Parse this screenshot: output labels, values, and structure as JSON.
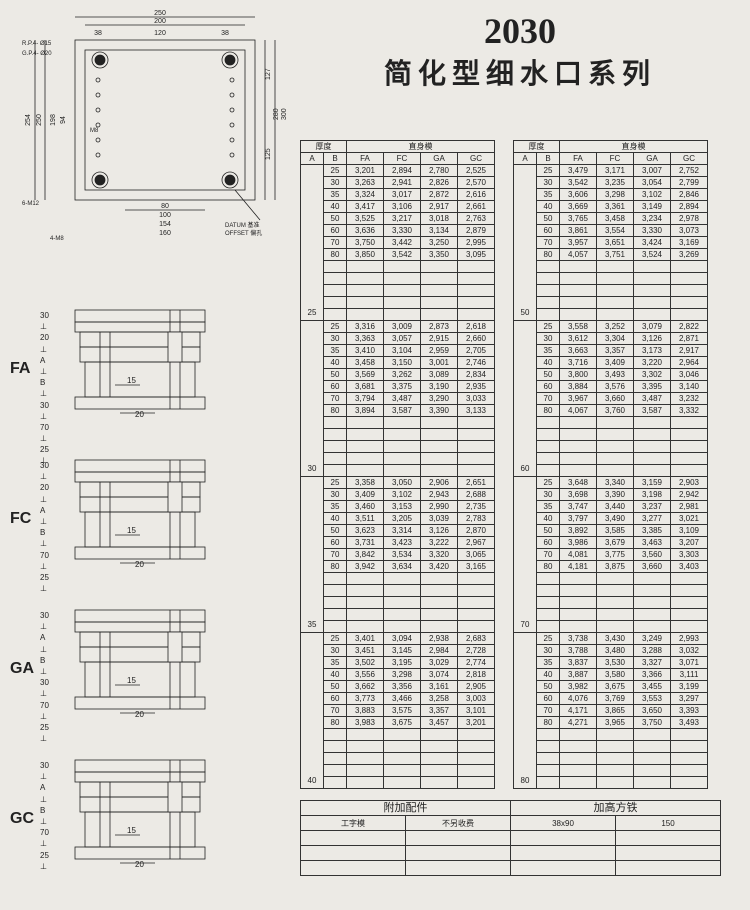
{
  "header": {
    "model": "2030",
    "subtitle": "简化型细水口系列"
  },
  "top_drawing": {
    "dims_top": [
      "250",
      "200",
      "38",
      "120",
      "38"
    ],
    "dims_left": [
      "250",
      "254",
      "198",
      "94"
    ],
    "dims_right": [
      "127",
      "280",
      "300",
      "125"
    ],
    "dims_bottom": [
      "80",
      "100",
      "154",
      "160"
    ],
    "labels": [
      "R.P.4- Ø15",
      "G.P.4- Ø20",
      "M8",
      "6-M12",
      "4-M8"
    ],
    "notes": [
      "DATUM 基准",
      "OFFSET 偏孔"
    ]
  },
  "side_codes": [
    "FA",
    "FC",
    "GA",
    "GC"
  ],
  "side_dims": {
    "FA": [
      "30",
      "20",
      "A",
      "B",
      "30",
      "70",
      "25"
    ],
    "FC": [
      "30",
      "20",
      "A",
      "B",
      "70",
      "25"
    ],
    "GA": [
      "30",
      "A",
      "B",
      "30",
      "70",
      "25"
    ],
    "GC": [
      "30",
      "A",
      "B",
      "70",
      "25"
    ]
  },
  "side_inner": {
    "v1": "15",
    "v2": "20"
  },
  "table_headers": {
    "thickness": "厚度",
    "mold": "直身模",
    "cols": [
      "A",
      "B",
      "FA",
      "FC",
      "GA",
      "GC"
    ]
  },
  "a_values_left": [
    "25",
    "30",
    "35",
    "40"
  ],
  "a_values_right": [
    "50",
    "60",
    "70",
    "80"
  ],
  "b_values": [
    "25",
    "30",
    "35",
    "40",
    "50",
    "60",
    "70",
    "80"
  ],
  "left_table": {
    "25": [
      [
        "3,201",
        "2,894",
        "2,780",
        "2,525"
      ],
      [
        "3,263",
        "2,941",
        "2,826",
        "2,570"
      ],
      [
        "3,324",
        "3,017",
        "2,872",
        "2,616"
      ],
      [
        "3,417",
        "3,106",
        "2,917",
        "2,661"
      ],
      [
        "3,525",
        "3,217",
        "3,018",
        "2,763"
      ],
      [
        "3,636",
        "3,330",
        "3,134",
        "2,879"
      ],
      [
        "3,750",
        "3,442",
        "3,250",
        "2,995"
      ],
      [
        "3,850",
        "3,542",
        "3,350",
        "3,095"
      ]
    ],
    "30": [
      [
        "3,316",
        "3,009",
        "2,873",
        "2,618"
      ],
      [
        "3,363",
        "3,057",
        "2,915",
        "2,660"
      ],
      [
        "3,410",
        "3,104",
        "2,959",
        "2,705"
      ],
      [
        "3,458",
        "3,150",
        "3,001",
        "2,746"
      ],
      [
        "3,569",
        "3,262",
        "3,089",
        "2,834"
      ],
      [
        "3,681",
        "3,375",
        "3,190",
        "2,935"
      ],
      [
        "3,794",
        "3,487",
        "3,290",
        "3,033"
      ],
      [
        "3,894",
        "3,587",
        "3,390",
        "3,133"
      ]
    ],
    "35": [
      [
        "3,358",
        "3,050",
        "2,906",
        "2,651"
      ],
      [
        "3,409",
        "3,102",
        "2,943",
        "2,688"
      ],
      [
        "3,460",
        "3,153",
        "2,990",
        "2,735"
      ],
      [
        "3,511",
        "3,205",
        "3,039",
        "2,783"
      ],
      [
        "3,623",
        "3,314",
        "3,126",
        "2,870"
      ],
      [
        "3,731",
        "3,423",
        "3,222",
        "2,967"
      ],
      [
        "3,842",
        "3,534",
        "3,320",
        "3,065"
      ],
      [
        "3,942",
        "3,634",
        "3,420",
        "3,165"
      ]
    ],
    "40": [
      [
        "3,401",
        "3,094",
        "2,938",
        "2,683"
      ],
      [
        "3,451",
        "3,145",
        "2,984",
        "2,728"
      ],
      [
        "3,502",
        "3,195",
        "3,029",
        "2,774"
      ],
      [
        "3,556",
        "3,298",
        "3,074",
        "2,818"
      ],
      [
        "3,662",
        "3,356",
        "3,161",
        "2,905"
      ],
      [
        "3,773",
        "3,466",
        "3,258",
        "3,003"
      ],
      [
        "3,883",
        "3,575",
        "3,357",
        "3,101"
      ],
      [
        "3,983",
        "3,675",
        "3,457",
        "3,201"
      ]
    ]
  },
  "right_table": {
    "50": [
      [
        "3,479",
        "3,171",
        "3,007",
        "2,752"
      ],
      [
        "3,542",
        "3,235",
        "3,054",
        "2,799"
      ],
      [
        "3,606",
        "3,298",
        "3,102",
        "2,846"
      ],
      [
        "3,669",
        "3,361",
        "3,149",
        "2,894"
      ],
      [
        "3,765",
        "3,458",
        "3,234",
        "2,978"
      ],
      [
        "3,861",
        "3,554",
        "3,330",
        "3,073"
      ],
      [
        "3,957",
        "3,651",
        "3,424",
        "3,169"
      ],
      [
        "4,057",
        "3,751",
        "3,524",
        "3,269"
      ]
    ],
    "60": [
      [
        "3,558",
        "3,252",
        "3,079",
        "2,822"
      ],
      [
        "3,612",
        "3,304",
        "3,126",
        "2,871"
      ],
      [
        "3,663",
        "3,357",
        "3,173",
        "2,917"
      ],
      [
        "3,716",
        "3,409",
        "3,220",
        "2,964"
      ],
      [
        "3,800",
        "3,493",
        "3,302",
        "3,046"
      ],
      [
        "3,884",
        "3,576",
        "3,395",
        "3,140"
      ],
      [
        "3,967",
        "3,660",
        "3,487",
        "3,232"
      ],
      [
        "4,067",
        "3,760",
        "3,587",
        "3,332"
      ]
    ],
    "70": [
      [
        "3,648",
        "3,340",
        "3,159",
        "2,903"
      ],
      [
        "3,698",
        "3,390",
        "3,198",
        "2,942"
      ],
      [
        "3,747",
        "3,440",
        "3,237",
        "2,981"
      ],
      [
        "3,797",
        "3,490",
        "3,277",
        "3,021"
      ],
      [
        "3,892",
        "3,585",
        "3,385",
        "3,109"
      ],
      [
        "3,986",
        "3,679",
        "3,463",
        "3,207"
      ],
      [
        "4,081",
        "3,775",
        "3,560",
        "3,303"
      ],
      [
        "4,181",
        "3,875",
        "3,660",
        "3,403"
      ]
    ],
    "80": [
      [
        "3,738",
        "3,430",
        "3,249",
        "2,993"
      ],
      [
        "3,788",
        "3,480",
        "3,288",
        "3,032"
      ],
      [
        "3,837",
        "3,530",
        "3,327",
        "3,071"
      ],
      [
        "3,887",
        "3,580",
        "3,366",
        "3,111"
      ],
      [
        "3,982",
        "3,675",
        "3,455",
        "3,199"
      ],
      [
        "4,076",
        "3,769",
        "3,553",
        "3,297"
      ],
      [
        "4,171",
        "3,865",
        "3,650",
        "3,393"
      ],
      [
        "4,271",
        "3,965",
        "3,750",
        "3,493"
      ]
    ]
  },
  "footer": {
    "left_header": "附加配件",
    "right_header": "加高方铁",
    "sub1": "工字模",
    "sub2": "不另收费",
    "sub3": "38x90",
    "sub4": "150"
  }
}
